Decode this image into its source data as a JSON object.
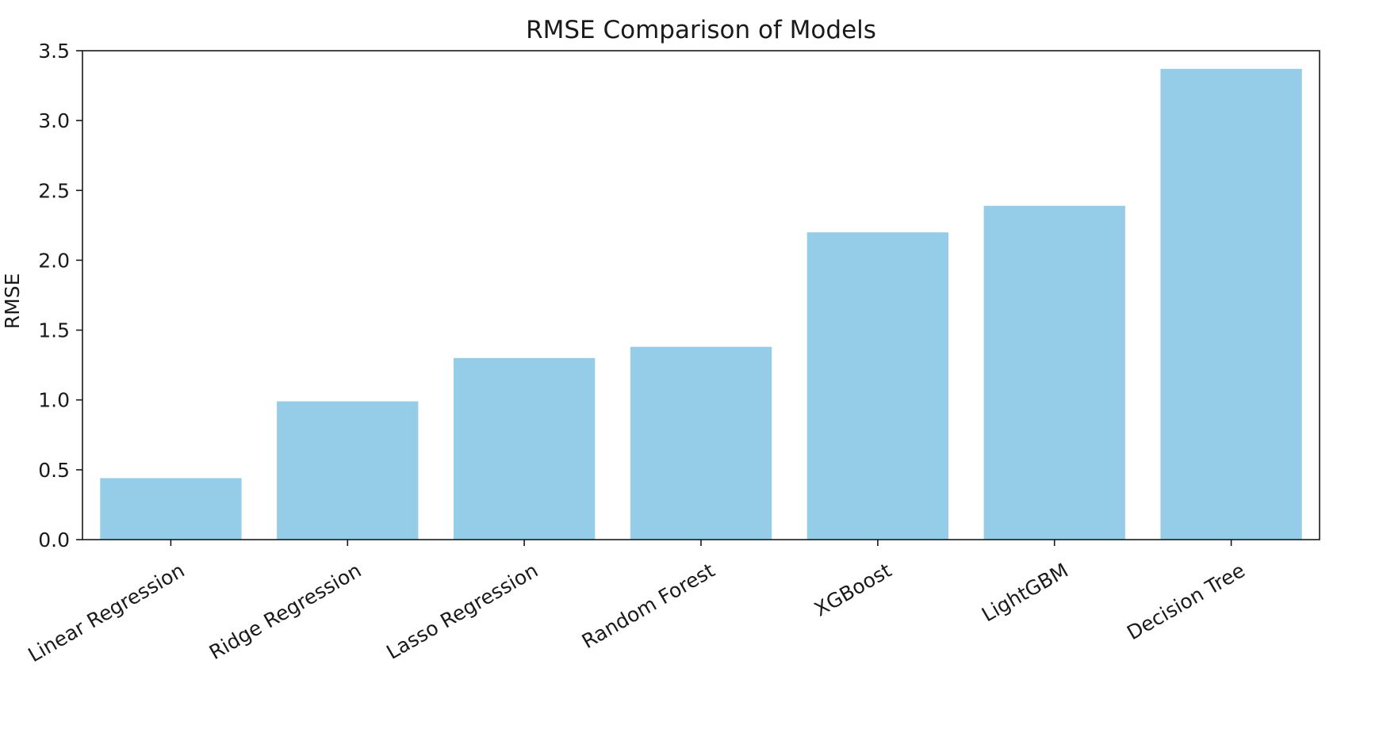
{
  "chart_data": {
    "type": "bar",
    "title": "RMSE Comparison of Models",
    "xlabel": "",
    "ylabel": "RMSE",
    "categories": [
      "Linear Regression",
      "Ridge Regression",
      "Lasso Regression",
      "Random Forest",
      "XGBoost",
      "LightGBM",
      "Decision Tree"
    ],
    "values": [
      0.44,
      0.99,
      1.3,
      1.38,
      2.2,
      2.39,
      3.37
    ],
    "ylim": [
      0,
      3.5
    ],
    "yticks": [
      "0.0",
      "0.5",
      "1.0",
      "1.5",
      "2.0",
      "2.5",
      "3.0",
      "3.5"
    ],
    "grid": false,
    "legend": "none",
    "colors": {
      "bar": "#95cde8",
      "axis": "#1a1a1a",
      "text": "#1a1a1a"
    }
  }
}
